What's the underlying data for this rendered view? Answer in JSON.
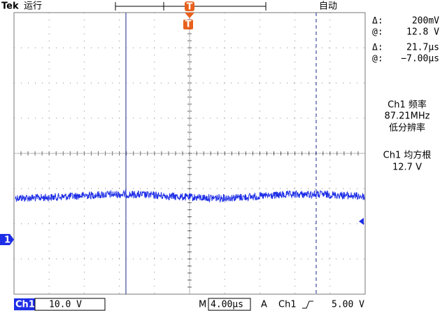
{
  "header": {
    "brand": "Tek",
    "status": "运行",
    "trigger_mode": "自动"
  },
  "cursors": {
    "amplitude": {
      "delta_label": "Δ:",
      "delta": "200mV",
      "at_label": "@:",
      "at": "12.8 V"
    },
    "time": {
      "delta_label": "Δ:",
      "delta": "21.7μs",
      "at_label": "@:",
      "at": "−7.00μs"
    }
  },
  "measurements": [
    {
      "label": "Ch1 频率",
      "value": "87.21MHz",
      "note": "低分辨率"
    },
    {
      "label": "Ch1 均方根",
      "value": "12.7 V"
    }
  ],
  "footer": {
    "channel": "Ch1",
    "scale": "10.0 V",
    "time_label": "M",
    "time_scale": "4.00μs",
    "trigger_label": "A",
    "trigger_source": "Ch1",
    "trigger_level": "5.00 V"
  },
  "markers": {
    "channel": "1",
    "trigger": "T"
  }
}
